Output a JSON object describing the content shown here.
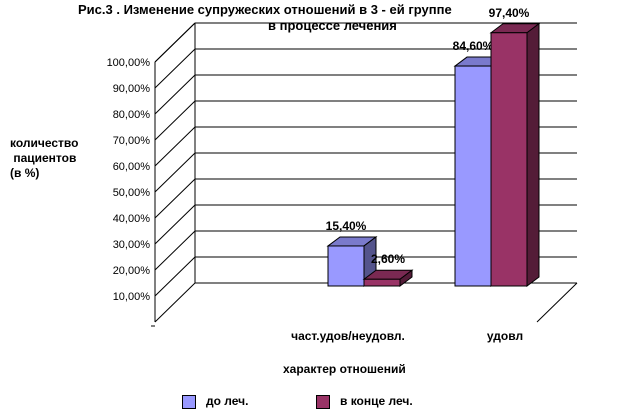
{
  "chart_data": {
    "type": "bar",
    "title_line1": "Рис.3 . Изменение супружеских отношений в 3 - ей группе",
    "title_line2": "в процессе лечения",
    "ylabel": "количество\n пациентов\n(в %)",
    "xlabel": "характер отношений",
    "categories": [
      "част.удов/неудовл.",
      "удовл"
    ],
    "series": [
      {
        "name": "до леч.",
        "values": [
          15.4,
          84.6
        ],
        "labels": [
          "15,40%",
          "84,60%"
        ],
        "color": "#9999ff"
      },
      {
        "name": "в конце леч.",
        "values": [
          2.6,
          97.4
        ],
        "labels": [
          "2,60%",
          "97,40%"
        ],
        "color": "#993366"
      }
    ],
    "ylim": [
      0,
      100
    ],
    "yticks": [
      "10,00%",
      "20,00%",
      "30,00%",
      "40,00%",
      "50,00%",
      "60,00%",
      "70,00%",
      "80,00%",
      "90,00%",
      "100,00%"
    ],
    "grid": true,
    "legend_position": "bottom"
  }
}
